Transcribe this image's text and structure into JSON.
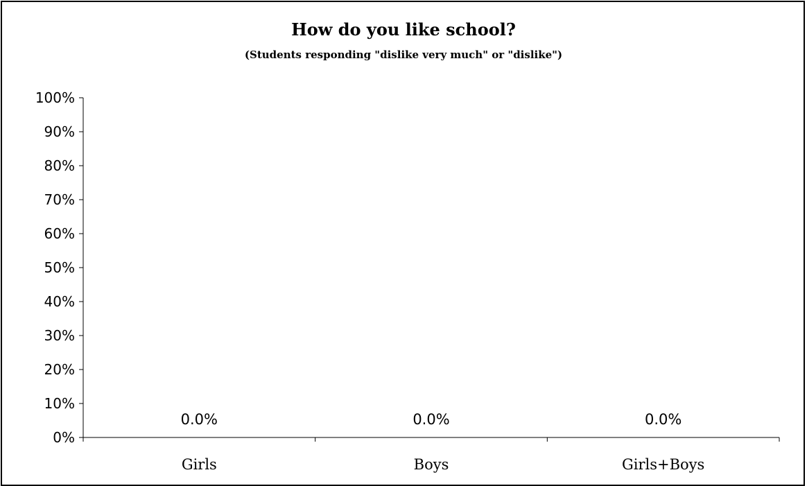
{
  "chart_data": {
    "type": "bar",
    "title": "How do you like school?",
    "subtitle": "(Students responding \"dislike very much\" or \"dislike\")",
    "categories": [
      "Girls",
      "Boys",
      "Girls+Boys"
    ],
    "values": [
      0.0,
      0.0,
      0.0
    ],
    "data_labels": [
      "0.0%",
      "0.0%",
      "0.0%"
    ],
    "ylim": [
      0,
      100
    ],
    "yticks": [
      0,
      10,
      20,
      30,
      40,
      50,
      60,
      70,
      80,
      90,
      100
    ],
    "ytick_labels": [
      "0%",
      "10%",
      "20%",
      "30%",
      "40%",
      "50%",
      "60%",
      "70%",
      "80%",
      "90%",
      "100%"
    ],
    "xlabel": "",
    "ylabel": "",
    "grid": false,
    "legend": "none",
    "bar_color": "#000000"
  }
}
